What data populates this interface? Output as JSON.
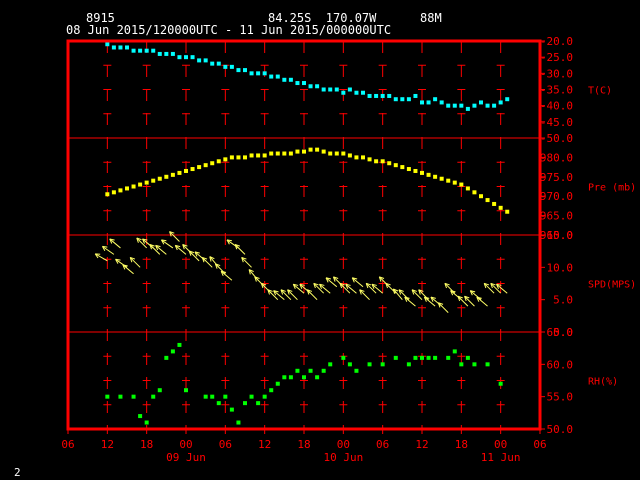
{
  "header": {
    "station": "8915",
    "position": "84.25S  170.07W",
    "elevation": "88M",
    "time_range": "08 Jun 2015/120000UTC - 11 Jun 2015/000000UTC"
  },
  "footer": {
    "page_number": "2"
  },
  "colors": {
    "frame": "#ff0000",
    "grid": "#ff0000",
    "axis_text": "#ff0000",
    "header_text": "#ffffff",
    "temperature": "#00ffff",
    "pressure": "#ffff00",
    "wind": "#ffff66",
    "humidity": "#00ff00"
  },
  "x_axis": {
    "tick_labels": [
      "06",
      "12",
      "18",
      "00",
      "06",
      "12",
      "18",
      "00",
      "06",
      "12",
      "18",
      "00",
      "06"
    ],
    "tick_hours": [
      0,
      6,
      12,
      18,
      24,
      30,
      36,
      42,
      48,
      54,
      60,
      66,
      72
    ],
    "day_labels": [
      {
        "label": "09 Jun",
        "hour": 18
      },
      {
        "label": "10 Jun",
        "hour": 42
      },
      {
        "label": "11 Jun",
        "hour": 66
      }
    ]
  },
  "chart_data": [
    {
      "type": "scatter",
      "ylabel": "T(C)",
      "ylim": [
        -50,
        -20
      ],
      "y_ticks": [
        "-20.0",
        "-25.0",
        "-30.0",
        "-35.0",
        "-40.0",
        "-45.0",
        "-50.0"
      ],
      "y_tick_values": [
        -20,
        -25,
        -30,
        -35,
        -40,
        -45,
        -50
      ],
      "x": [
        6,
        7,
        8,
        9,
        10,
        11,
        12,
        13,
        14,
        15,
        16,
        17,
        18,
        19,
        20,
        21,
        22,
        23,
        24,
        25,
        26,
        27,
        28,
        29,
        30,
        31,
        32,
        33,
        34,
        35,
        36,
        37,
        38,
        39,
        40,
        41,
        42,
        43,
        44,
        45,
        46,
        47,
        48,
        49,
        50,
        51,
        52,
        53,
        54,
        55,
        56,
        57,
        58,
        59,
        60,
        61,
        62,
        63,
        64,
        65,
        66,
        67
      ],
      "y": [
        -21,
        -22,
        -22,
        -22,
        -23,
        -23,
        -23,
        -23,
        -24,
        -24,
        -24,
        -25,
        -25,
        -25,
        -26,
        -26,
        -27,
        -27,
        -28,
        -28,
        -29,
        -29,
        -30,
        -30,
        -30,
        -31,
        -31,
        -32,
        -32,
        -33,
        -33,
        -34,
        -34,
        -35,
        -35,
        -35,
        -36,
        -35,
        -36,
        -36,
        -37,
        -37,
        -37,
        -37,
        -38,
        -38,
        -38,
        -37,
        -39,
        -39,
        -38,
        -39,
        -40,
        -40,
        -40,
        -41,
        -40,
        -39,
        -40,
        -40,
        -39,
        -38
      ]
    },
    {
      "type": "scatter",
      "ylabel": "Pre (mb)",
      "ylim": [
        960,
        985
      ],
      "y_ticks": [
        "980.0",
        "975.0",
        "970.0",
        "965.0",
        "960.0"
      ],
      "y_tick_values": [
        980,
        975,
        970,
        965,
        960
      ],
      "x": [
        6,
        7,
        8,
        9,
        10,
        11,
        12,
        13,
        14,
        15,
        16,
        17,
        18,
        19,
        20,
        21,
        22,
        23,
        24,
        25,
        26,
        27,
        28,
        29,
        30,
        31,
        32,
        33,
        34,
        35,
        36,
        37,
        38,
        39,
        40,
        41,
        42,
        43,
        44,
        45,
        46,
        47,
        48,
        49,
        50,
        51,
        52,
        53,
        54,
        55,
        56,
        57,
        58,
        59,
        60,
        61,
        62,
        63,
        64,
        65,
        66,
        67
      ],
      "y": [
        970.5,
        971,
        971.5,
        972,
        972.5,
        973,
        973.5,
        974,
        974.5,
        975,
        975.5,
        976,
        976.5,
        977,
        977.5,
        978,
        978.5,
        979,
        979.5,
        980,
        980,
        980,
        980.5,
        980.5,
        980.5,
        981,
        981,
        981,
        981,
        981.5,
        981.5,
        982,
        982,
        981.5,
        981,
        981,
        981,
        980.5,
        980,
        980,
        979.5,
        979,
        979,
        978.5,
        978,
        977.5,
        977,
        976.5,
        976,
        975.5,
        975,
        974.5,
        974,
        973.5,
        973,
        972,
        971,
        970,
        969,
        968,
        967,
        966
      ]
    },
    {
      "type": "scatter",
      "ylabel": "SPD(MPS)",
      "ylim": [
        0,
        15
      ],
      "y_ticks": [
        "15.0",
        "10.0",
        "5.0",
        "0.0"
      ],
      "y_tick_values": [
        15,
        10,
        5,
        0
      ],
      "x": [
        6,
        7,
        8,
        9,
        10,
        11,
        12,
        13,
        14,
        15,
        16,
        17,
        18,
        19,
        20,
        21,
        22,
        23,
        24,
        25,
        26,
        27,
        28,
        29,
        30,
        31,
        32,
        33,
        34,
        35,
        36,
        37,
        38,
        39,
        40,
        41,
        42,
        43,
        44,
        45,
        46,
        47,
        48,
        49,
        50,
        51,
        52,
        53,
        54,
        55,
        56,
        57,
        58,
        59,
        60,
        61,
        62,
        63,
        64,
        65,
        66,
        67
      ],
      "y": [
        11,
        12,
        13,
        10,
        9,
        10,
        13,
        13,
        12,
        12,
        13,
        14,
        12,
        12,
        11,
        11,
        10,
        10,
        9,
        8,
        13,
        12,
        10,
        8,
        7,
        6,
        5,
        5,
        5,
        5,
        6,
        6,
        5,
        6,
        6,
        7,
        7,
        6,
        6,
        7,
        5,
        6,
        6,
        7,
        6,
        5,
        5,
        4,
        5,
        5,
        4,
        4,
        3,
        6,
        5,
        4,
        4,
        5,
        4,
        6,
        6,
        6
      ],
      "direction_deg": [
        210,
        215,
        220,
        215,
        220,
        225,
        225,
        220,
        225,
        220,
        215,
        225,
        220,
        225,
        225,
        220,
        225,
        230,
        225,
        220,
        215,
        225,
        225,
        230,
        225,
        225,
        225,
        220,
        225,
        225,
        220,
        220,
        225,
        225,
        220,
        220,
        225,
        225,
        220,
        220,
        225,
        225,
        220,
        225,
        225,
        230,
        225,
        220,
        225,
        225,
        220,
        220,
        225,
        225,
        220,
        225,
        225,
        220,
        220,
        225,
        225,
        220
      ]
    },
    {
      "type": "scatter",
      "ylabel": "RH(%)",
      "ylim": [
        50,
        65
      ],
      "y_ticks": [
        "65.0",
        "60.0",
        "55.0",
        "50.0"
      ],
      "y_tick_values": [
        65,
        60,
        55,
        50
      ],
      "x": [
        6,
        8,
        10,
        11,
        12,
        13,
        14,
        15,
        16,
        17,
        18,
        21,
        22,
        23,
        24,
        25,
        26,
        27,
        28,
        29,
        30,
        31,
        32,
        33,
        34,
        35,
        36,
        37,
        38,
        39,
        40,
        42,
        43,
        44,
        46,
        48,
        50,
        52,
        53,
        54,
        55,
        56,
        58,
        59,
        60,
        61,
        62,
        64,
        66
      ],
      "y": [
        55,
        55,
        55,
        52,
        51,
        55,
        56,
        61,
        62,
        63,
        56,
        55,
        55,
        54,
        55,
        53,
        51,
        54,
        55,
        54,
        55,
        56,
        57,
        58,
        58,
        59,
        58,
        59,
        58,
        59,
        60,
        61,
        60,
        59,
        60,
        60,
        61,
        60,
        61,
        61,
        61,
        61,
        61,
        62,
        60,
        61,
        60,
        60,
        57
      ]
    }
  ]
}
